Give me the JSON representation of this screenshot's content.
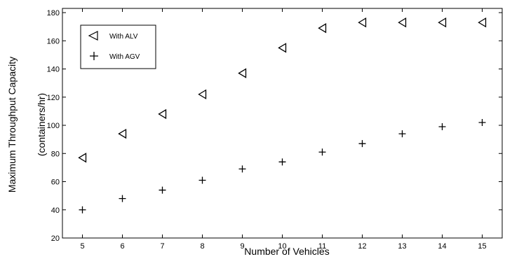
{
  "chart_data": {
    "type": "scatter",
    "xlabel": "Number of Vehicles",
    "ylabel_line1": "Maximum Throughput Capacity",
    "ylabel_line2": "(containers/hr)",
    "xlim": [
      4.5,
      15.5
    ],
    "ylim": [
      20,
      183
    ],
    "xticks": [
      5,
      6,
      7,
      8,
      9,
      10,
      11,
      12,
      13,
      14,
      15
    ],
    "yticks": [
      20,
      40,
      60,
      80,
      100,
      120,
      140,
      160,
      180
    ],
    "grid": false,
    "legend_position": "top-left",
    "series": [
      {
        "name": "With ALV",
        "marker": "triangle-left",
        "color": "#000000",
        "x": [
          5,
          6,
          7,
          8,
          9,
          10,
          11,
          12,
          13,
          14,
          15
        ],
        "y": [
          77,
          94,
          108,
          122,
          137,
          155,
          169,
          173,
          173,
          173,
          173
        ]
      },
      {
        "name": "With AGV",
        "marker": "plus",
        "color": "#000000",
        "x": [
          5,
          6,
          7,
          8,
          9,
          10,
          11,
          12,
          13,
          14,
          15
        ],
        "y": [
          40,
          48,
          54,
          61,
          69,
          74,
          81,
          87,
          94,
          99,
          102
        ]
      }
    ]
  }
}
